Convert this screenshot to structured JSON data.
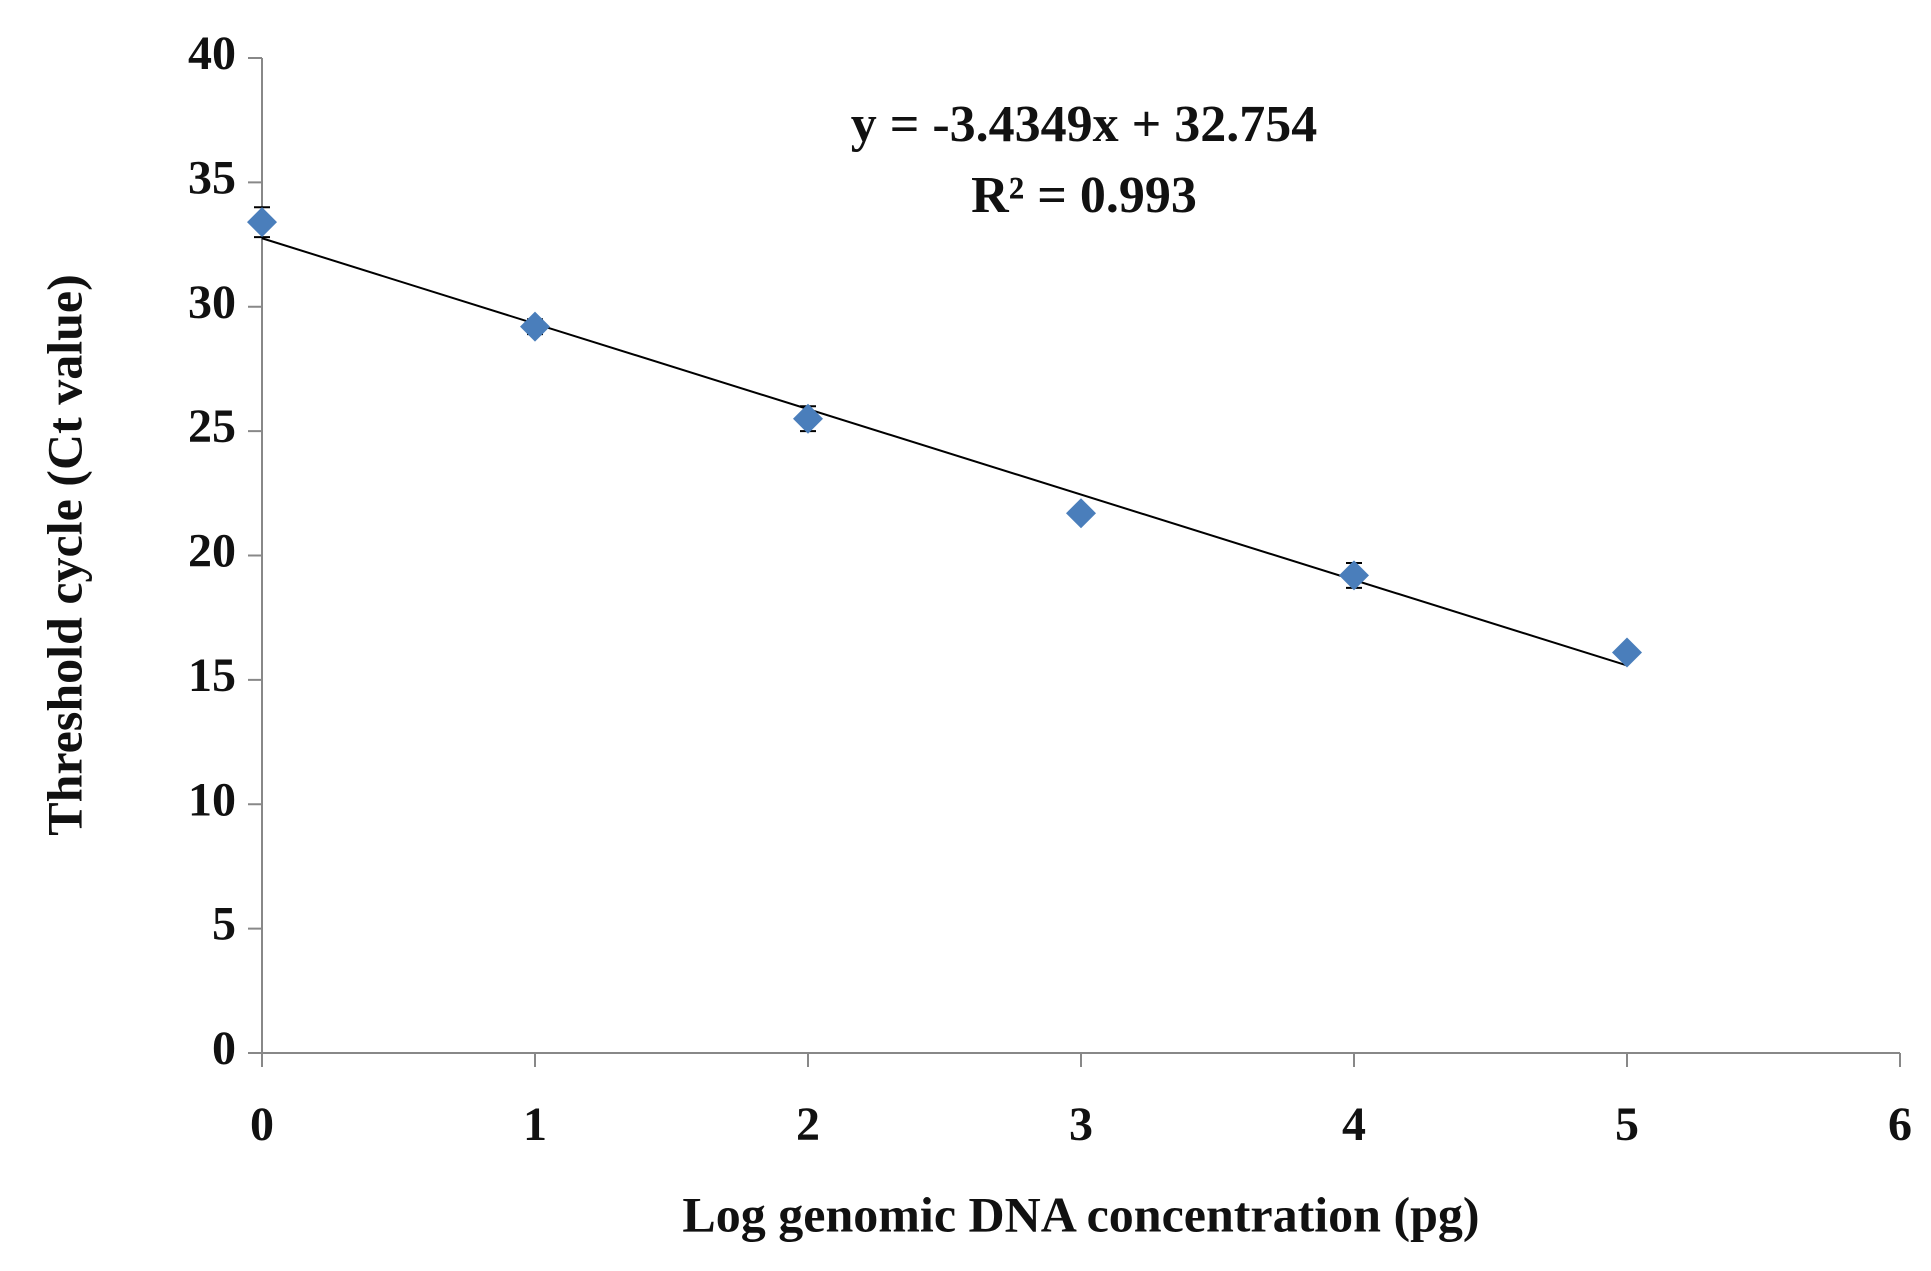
{
  "chart_data": {
    "type": "scatter",
    "x_label": "Log genomic DNA concentration (pg)",
    "y_label": "Threshold cycle (Ct value)",
    "x": [
      0,
      1,
      2,
      3,
      4,
      5
    ],
    "series": [
      {
        "color": "#4a7ebb",
        "values": [
          33.4,
          29.2,
          25.5,
          21.7,
          19.2,
          16.1
        ],
        "errors": [
          0.6,
          0.3,
          0.5,
          0.2,
          0.5,
          0.2
        ]
      }
    ],
    "trendline": {
      "slope": -3.4349,
      "intercept": 32.754,
      "equation": "y = -3.4349x + 32.754",
      "r2": 0.993,
      "r2_label": "R² = 0.993",
      "color": "#000000"
    },
    "xlim": [
      0,
      6
    ],
    "xticks": [
      0,
      1,
      2,
      3,
      4,
      5,
      6
    ],
    "ylim": [
      0,
      40
    ],
    "yticks": [
      0,
      5,
      10,
      15,
      20,
      25,
      30,
      35,
      40
    ],
    "grid": false
  }
}
